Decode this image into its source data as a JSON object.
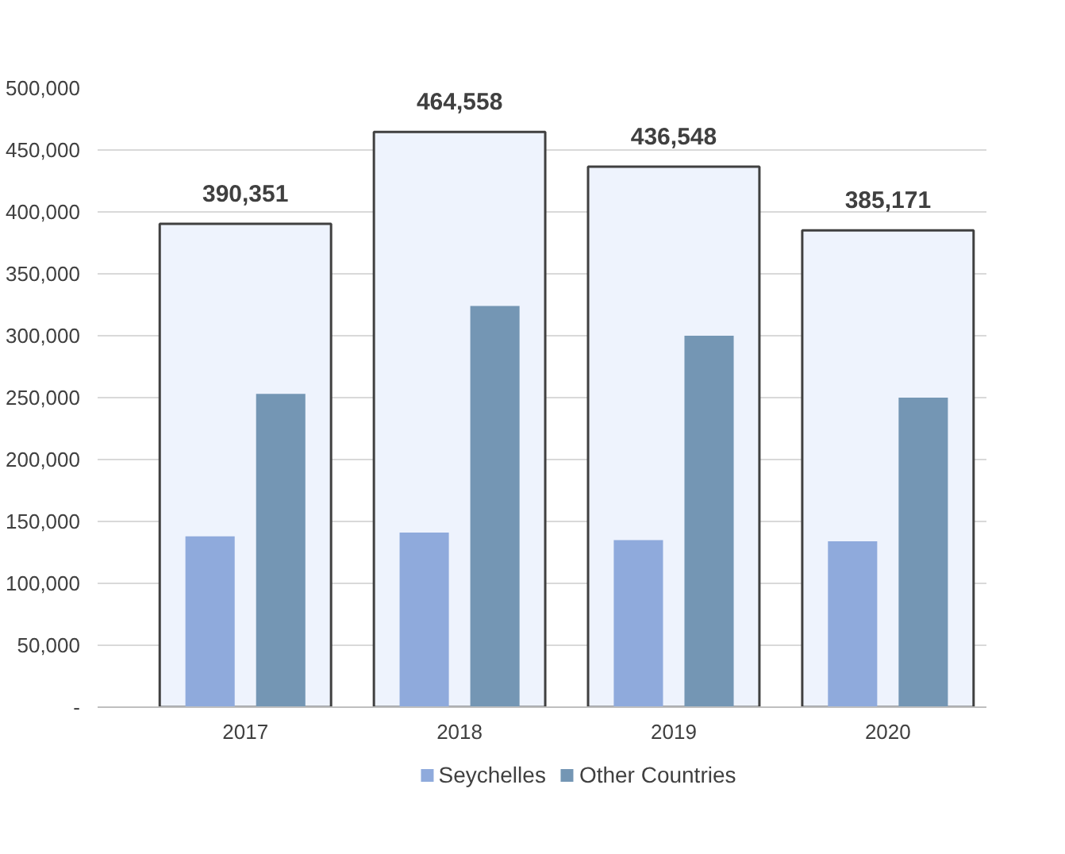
{
  "chart_data": {
    "type": "bar",
    "categories": [
      "2017",
      "2018",
      "2019",
      "2020"
    ],
    "series": [
      {
        "color": "#eef3fd",
        "values": [
          390351,
          464558,
          436548,
          385171
        ],
        "value_labels": [
          "390,351",
          "464,558",
          "436,548",
          "385,171"
        ]
      },
      {
        "name": "Seychelles",
        "color": "#8faadc",
        "values": [
          138000,
          141000,
          135000,
          134000
        ]
      },
      {
        "name": "Other Countries",
        "color": "#7496b4",
        "values": [
          253000,
          324000,
          300000,
          250000
        ]
      }
    ],
    "ylim": [
      0,
      500000
    ],
    "yticks": [
      {
        "value": 0,
        "label": "-"
      },
      {
        "value": 50000,
        "label": "50,000"
      },
      {
        "value": 100000,
        "label": "100,000"
      },
      {
        "value": 150000,
        "label": "150,000"
      },
      {
        "value": 200000,
        "label": "200,000"
      },
      {
        "value": 250000,
        "label": "250,000"
      },
      {
        "value": 300000,
        "label": "300,000"
      },
      {
        "value": 350000,
        "label": "350,000"
      },
      {
        "value": 400000,
        "label": "400,000"
      },
      {
        "value": 450000,
        "label": "450,000"
      },
      {
        "value": 500000,
        "label": "500,000"
      }
    ],
    "grid": "y",
    "legend": "bottom"
  }
}
